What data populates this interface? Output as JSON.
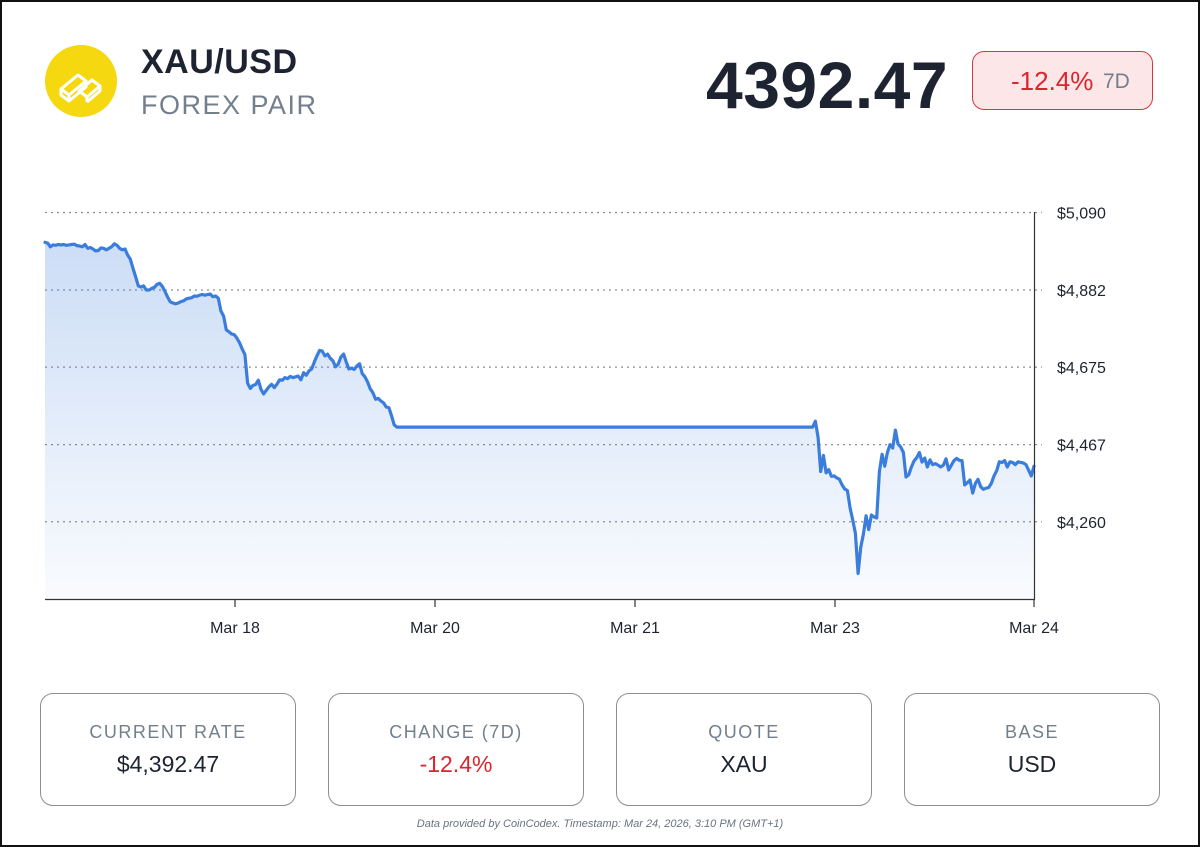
{
  "header": {
    "pair": "XAU/USD",
    "subtitle": "FOREX PAIR",
    "price": "4392.47",
    "change_pct": "-12.4%",
    "change_period": "7D",
    "logo_icon": "gold-bars-icon"
  },
  "colors": {
    "accent_line": "#3b7ddd",
    "negative": "#d9262e",
    "logo_bg": "#f5d80f"
  },
  "cards": [
    {
      "label": "CURRENT RATE",
      "value": "$4,392.47"
    },
    {
      "label": "CHANGE (7D)",
      "value": "-12.4%"
    },
    {
      "label": "QUOTE",
      "value": "XAU"
    },
    {
      "label": "BASE",
      "value": "USD"
    }
  ],
  "footer": "Data provided by CoinCodex. Timestamp: Mar 24, 2026, 3:10 PM (GMT+1)",
  "chart_data": {
    "type": "area",
    "title": "",
    "xlabel": "",
    "ylabel": "",
    "grid": true,
    "legend": "none",
    "y_ticks": [
      5090,
      4882,
      4675,
      4467,
      4260
    ],
    "y_tick_labels": [
      "$5,090",
      "$4,882",
      "$4,675",
      "$4,467",
      "$4,260"
    ],
    "ylim": [
      4050,
      5090
    ],
    "x_ticks": [
      "Mar 18",
      "Mar 20",
      "Mar 21",
      "Mar 23",
      "Mar 24"
    ],
    "series": [
      {
        "values": [
          5010,
          5008,
          4998,
          5003,
          5002,
          5004,
          5003,
          5004,
          5002,
          5003,
          5004,
          5005,
          5001,
          5000,
          4998,
          5004,
          4994,
          4996,
          4992,
          4987,
          4988,
          4995,
          4994,
          4990,
          4994,
          4998,
          5006,
          5002,
          4994,
          4990,
          4992,
          4976,
          4965,
          4940,
          4918,
          4893,
          4890,
          4893,
          4882,
          4882,
          4886,
          4889,
          4897,
          4900,
          4892,
          4878,
          4863,
          4850,
          4847,
          4845,
          4847,
          4851,
          4853,
          4858,
          4860,
          4861,
          4866,
          4865,
          4868,
          4870,
          4868,
          4870,
          4871,
          4864,
          4866,
          4860,
          4826,
          4812,
          4775,
          4770,
          4764,
          4762,
          4753,
          4740,
          4723,
          4709,
          4632,
          4618,
          4626,
          4628,
          4640,
          4616,
          4603,
          4613,
          4622,
          4629,
          4620,
          4629,
          4641,
          4640,
          4647,
          4644,
          4650,
          4647,
          4649,
          4651,
          4641,
          4660,
          4653,
          4665,
          4670,
          4688,
          4705,
          4720,
          4718,
          4705,
          4710,
          4699,
          4692,
          4676,
          4683,
          4702,
          4710,
          4689,
          4670,
          4672,
          4669,
          4678,
          4684,
          4658,
          4649,
          4635,
          4617,
          4606,
          4589,
          4591,
          4584,
          4579,
          4568,
          4566,
          4545,
          4520,
          4514,
          4514,
          4514,
          4514,
          4514,
          4514,
          4514,
          4514,
          4514,
          4514,
          4514,
          4514,
          4514,
          4514,
          4514,
          4514,
          4514,
          4514,
          4514,
          4514,
          4514,
          4514,
          4514,
          4514,
          4514,
          4514,
          4514,
          4514,
          4514,
          4514,
          4514,
          4514,
          4514,
          4514,
          4514,
          4514,
          4514,
          4514,
          4514,
          4514,
          4514,
          4514,
          4514,
          4514,
          4514,
          4514,
          4514,
          4514,
          4514,
          4514,
          4514,
          4514,
          4514,
          4514,
          4514,
          4514,
          4514,
          4514,
          4514,
          4514,
          4514,
          4514,
          4514,
          4514,
          4514,
          4514,
          4514,
          4514,
          4514,
          4514,
          4514,
          4514,
          4514,
          4514,
          4514,
          4514,
          4514,
          4514,
          4514,
          4514,
          4514,
          4514,
          4514,
          4514,
          4514,
          4514,
          4514,
          4514,
          4514,
          4514,
          4514,
          4514,
          4514,
          4514,
          4514,
          4514,
          4514,
          4514,
          4514,
          4514,
          4514,
          4514,
          4514,
          4514,
          4514,
          4514,
          4514,
          4514,
          4514,
          4514,
          4514,
          4514,
          4514,
          4514,
          4514,
          4514,
          4514,
          4514,
          4514,
          4514,
          4514,
          4514,
          4514,
          4514,
          4514,
          4514,
          4514,
          4514,
          4514,
          4514,
          4514,
          4514,
          4514,
          4514,
          4514,
          4514,
          4514,
          4514,
          4514,
          4514,
          4514,
          4514,
          4514,
          4514,
          4514,
          4514,
          4514,
          4514,
          4514,
          4514,
          4514,
          4514,
          4514,
          4514,
          4514,
          4514,
          4514,
          4530,
          4486,
          4395,
          4438,
          4391,
          4400,
          4382,
          4383,
          4378,
          4374,
          4359,
          4348,
          4344,
          4297,
          4265,
          4229,
          4121,
          4191,
          4227,
          4276,
          4239,
          4278,
          4273,
          4270,
          4395,
          4441,
          4409,
          4446,
          4467,
          4458,
          4506,
          4469,
          4461,
          4446,
          4380,
          4386,
          4407,
          4423,
          4432,
          4446,
          4420,
          4431,
          4407,
          4426,
          4413,
          4416,
          4412,
          4407,
          4412,
          4429,
          4399,
          4412,
          4424,
          4430,
          4425,
          4424,
          4359,
          4365,
          4372,
          4337,
          4363,
          4374,
          4354,
          4347,
          4350,
          4352,
          4363,
          4383,
          4397,
          4421,
          4419,
          4424,
          4407,
          4421,
          4419,
          4413,
          4421,
          4419,
          4418,
          4413,
          4398,
          4383,
          4409
        ]
      }
    ]
  }
}
